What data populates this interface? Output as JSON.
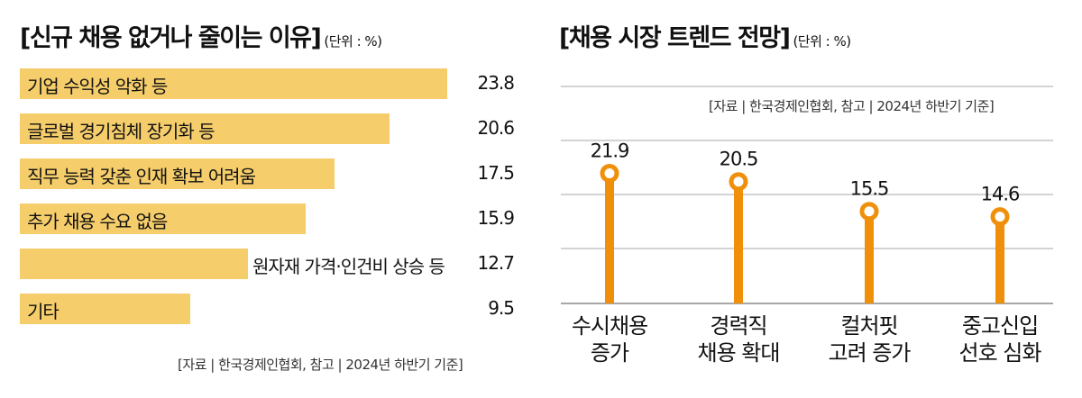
{
  "left_panel": {
    "title": "[신규 채용 없거나 줄이는 이유]",
    "unit": "(단위 : %)",
    "source": "[자료 | 한국경제인협회, 참고 | 2024년 하반기 기준]"
  },
  "right_panel": {
    "title": "[채용 시장 트렌드 전망]",
    "unit": "(단위 : %)",
    "source": "[자료 | 한국경제인협회, 참고 | 2024년 하반기 기준]"
  },
  "colors": {
    "bar": "#f5cd6b",
    "lollipop": "#f0900a",
    "grid": "#8a8a8a"
  },
  "chart_data": [
    {
      "type": "bar",
      "orientation": "horizontal",
      "title": "[신규 채용 없거나 줄이는 이유]",
      "unit": "(단위 : %)",
      "categories": [
        "기업 수익성 악화 등",
        "글로벌 경기침체 장기화 등",
        "직무 능력 갖춘 인재 확보 어려움",
        "추가 채용 수요 없음",
        "원자재 가격·인건비 상승 등",
        "기타"
      ],
      "values": [
        23.8,
        20.6,
        17.5,
        15.9,
        12.7,
        9.5
      ],
      "value_labels": [
        "23.8",
        "20.6",
        "17.5",
        "15.9",
        "12.7",
        "9.5"
      ],
      "xlim": [
        0,
        25
      ]
    },
    {
      "type": "lollipop",
      "title": "[채용 시장 트렌드 전망]",
      "unit": "(단위 : %)",
      "categories": [
        [
          "수시채용",
          "증가"
        ],
        [
          "경력직",
          "채용 확대"
        ],
        [
          "컬처핏",
          "고려 증가"
        ],
        [
          "중고신입",
          "선호 심화"
        ]
      ],
      "values": [
        21.9,
        20.5,
        15.5,
        14.6
      ],
      "value_labels": [
        "21.9",
        "20.5",
        "15.5",
        "14.6"
      ],
      "ylim": [
        0,
        29
      ],
      "grid": true
    }
  ]
}
